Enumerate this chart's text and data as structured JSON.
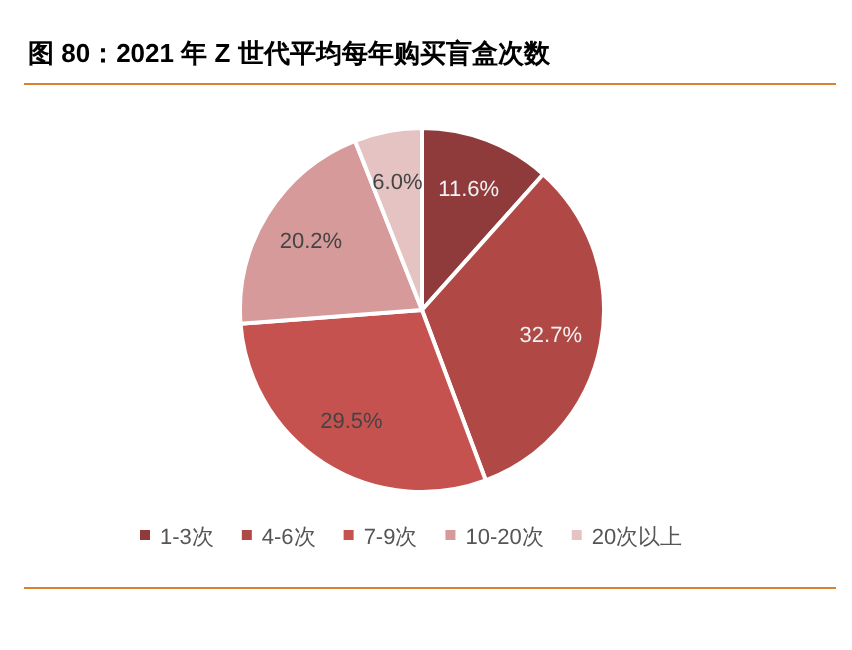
{
  "chart_data": {
    "type": "pie",
    "title": "图 80：2021 年 Z 世代平均每年购买盲盒次数",
    "categories": [
      "1-3次",
      "4-6次",
      "7-9次",
      "10-20次",
      "20次以上"
    ],
    "values": [
      11.6,
      32.7,
      29.5,
      20.2,
      6.0
    ],
    "value_labels": [
      "11.6%",
      "32.7%",
      "29.5%",
      "20.2%",
      "6.0%"
    ],
    "colors": [
      "#8f3b3c",
      "#b04846",
      "#c65250",
      "#d59a99",
      "#e5c3c3"
    ],
    "legend": "bottom"
  }
}
